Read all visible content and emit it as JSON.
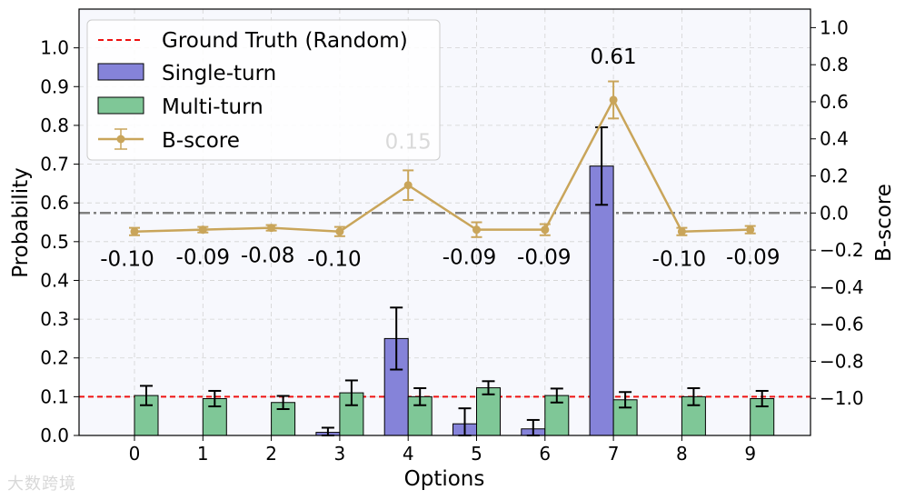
{
  "chart_data": {
    "type": "bar",
    "xlabel": "Options",
    "ylabel": "Probability",
    "y2label": "B-score",
    "categories": [
      "0",
      "1",
      "2",
      "3",
      "4",
      "5",
      "6",
      "7",
      "8",
      "9"
    ],
    "ylim": [
      0,
      1.1
    ],
    "y2lim": [
      -1.2,
      1.1
    ],
    "yticks": [
      0.0,
      0.1,
      0.2,
      0.3,
      0.4,
      0.5,
      0.6,
      0.7,
      0.8,
      0.9,
      1.0
    ],
    "ytick_labels": [
      "0.0",
      "0.1",
      "0.2",
      "0.3",
      "0.4",
      "0.5",
      "0.6",
      "0.7",
      "0.8",
      "0.9",
      "1.0"
    ],
    "y2ticks": [
      -1.0,
      -0.8,
      -0.6,
      -0.4,
      -0.2,
      0.0,
      0.2,
      0.4,
      0.6,
      0.8,
      1.0
    ],
    "y2tick_labels": [
      "−1.0",
      "−0.8",
      "−0.6",
      "−0.4",
      "−0.2",
      "0.0",
      "0.2",
      "0.4",
      "0.6",
      "0.8",
      "1.0"
    ],
    "grid": true,
    "legend_position": "top-left",
    "ground_truth": {
      "name": "Ground Truth (Random)",
      "value": 0.1,
      "color": "#ee1111"
    },
    "zero_line_color": "#808080",
    "series": [
      {
        "name": "Single-turn",
        "kind": "bar",
        "color": "#8583d9",
        "values": [
          0.0,
          0.0,
          0.0,
          0.008,
          0.25,
          0.03,
          0.017,
          0.695,
          0.0,
          0.0
        ],
        "errors": [
          0.0,
          0.0,
          0.0,
          0.012,
          0.08,
          0.04,
          0.023,
          0.1,
          0.0,
          0.0
        ]
      },
      {
        "name": "Multi-turn",
        "kind": "bar",
        "color": "#7fc797",
        "values": [
          0.103,
          0.095,
          0.085,
          0.11,
          0.1,
          0.123,
          0.103,
          0.092,
          0.1,
          0.095
        ],
        "errors": [
          0.025,
          0.02,
          0.017,
          0.032,
          0.022,
          0.017,
          0.018,
          0.02,
          0.022,
          0.02
        ]
      },
      {
        "name": "B-score",
        "kind": "line",
        "axis": "right",
        "color": "#c9a55a",
        "values": [
          -0.1,
          -0.09,
          -0.08,
          -0.1,
          0.15,
          -0.09,
          -0.09,
          0.61,
          -0.1,
          -0.09
        ],
        "errors": [
          0.02,
          0.015,
          0.015,
          0.025,
          0.08,
          0.04,
          0.03,
          0.1,
          0.02,
          0.02
        ],
        "labels": [
          "-0.10",
          "-0.09",
          "-0.08",
          "-0.10",
          "0.15",
          "-0.09",
          "-0.09",
          "0.61",
          "-0.10",
          "-0.09"
        ]
      }
    ]
  },
  "watermark": "大数跨境"
}
